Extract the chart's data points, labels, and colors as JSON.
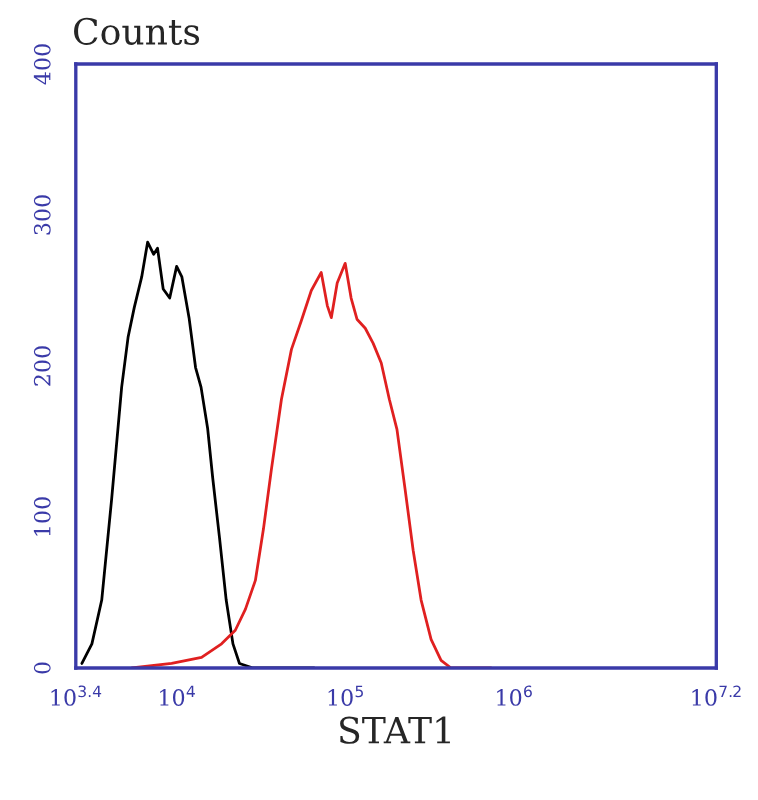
{
  "chart_data": {
    "type": "line",
    "ylabel": "Counts",
    "xlabel": "STAT1",
    "log": "x",
    "grid": false,
    "legend": false,
    "marker": "none",
    "line_style": "solid",
    "xlim": [
      2512,
      15850000
    ],
    "xticks": [
      {
        "value": 2512,
        "label": "10$^{3.4}$"
      },
      {
        "value": 10000,
        "label": "10$^{4}$"
      },
      {
        "value": 100000,
        "label": "10$^{5}$"
      },
      {
        "value": 1000000,
        "label": "10$^{6}$"
      },
      {
        "value": 15850000,
        "label": "10$^{7.2}$"
      }
    ],
    "ylim": [
      0,
      400
    ],
    "yticks": [
      0,
      100,
      200,
      300,
      400
    ],
    "series": [
      {
        "color": "#000000",
        "x": [
          2730,
          3130,
          3580,
          4100,
          4700,
          5130,
          5590,
          6180,
          6700,
          7280,
          7670,
          8290,
          9060,
          9960,
          10700,
          11800,
          12900,
          13900,
          15200,
          16300,
          17900,
          19600,
          21500,
          23500,
          28300,
          65000
        ],
        "values": [
          3,
          16,
          45,
          112,
          186,
          219,
          239,
          259,
          282,
          274,
          278,
          251,
          245,
          266,
          259,
          232,
          199,
          186,
          159,
          126,
          86,
          45,
          16,
          3,
          0,
          0
        ]
      },
      {
        "color": "#e02020",
        "x": [
          5400,
          9300,
          14000,
          18400,
          22200,
          25500,
          29200,
          32600,
          36300,
          41700,
          47800,
          54700,
          62700,
          71800,
          78000,
          82400,
          89300,
          99600,
          108000,
          117000,
          131000,
          146000,
          163000,
          182000,
          202000,
          226000,
          252000,
          281000,
          322000,
          369000,
          423000,
          729000
        ],
        "values": [
          0,
          3,
          7,
          16,
          25,
          39,
          58,
          92,
          131,
          178,
          211,
          230,
          250,
          262,
          240,
          232,
          255,
          268,
          245,
          231,
          225,
          215,
          202,
          178,
          158,
          118,
          78,
          45,
          19,
          5,
          0,
          0
        ]
      }
    ]
  }
}
